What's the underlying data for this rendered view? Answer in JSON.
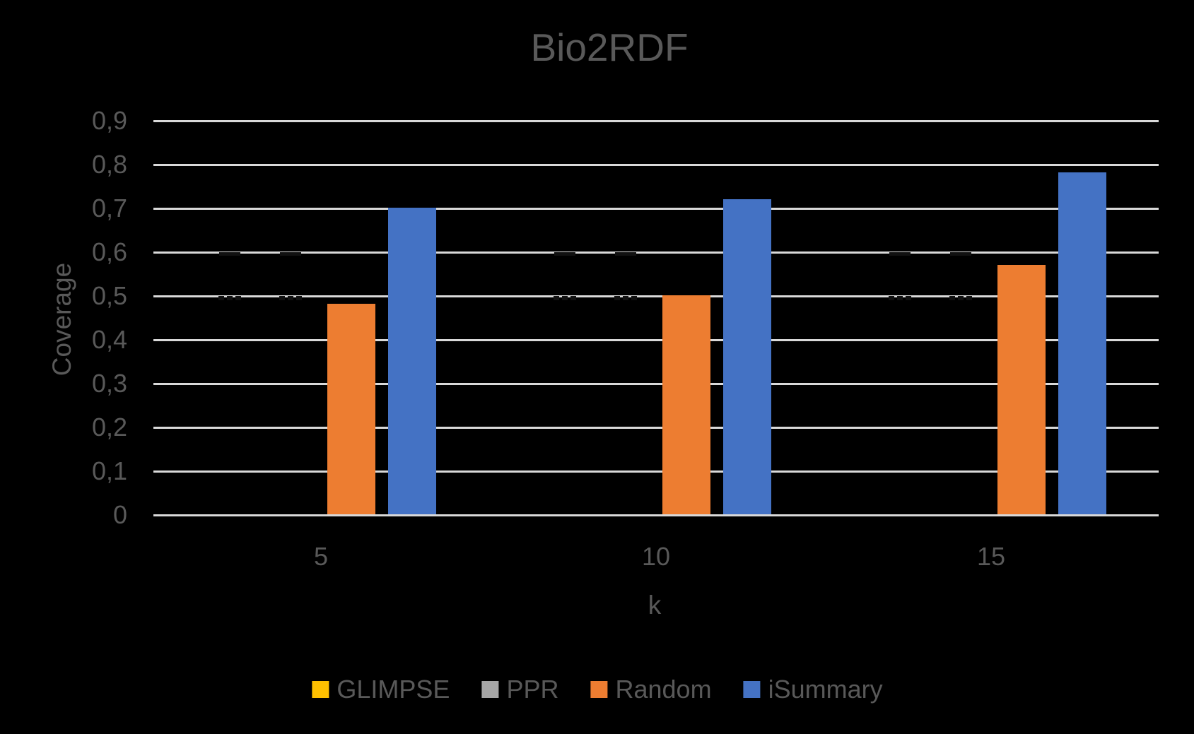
{
  "chart_data": {
    "type": "bar",
    "title": "Bio2RDF",
    "categories": [
      "5",
      "10",
      "15"
    ],
    "xlabel": "k",
    "ylabel": "Coverage",
    "ylim": [
      0,
      0.9
    ],
    "ytick_step": 0.1,
    "ytick_labels": [
      "0",
      "0,1",
      "0,2",
      "0,3",
      "0,4",
      "0,5",
      "0,6",
      "0,7",
      "0,8",
      "0,9"
    ],
    "decimal_separator": ",",
    "grid": true,
    "legend_position": "bottom",
    "series": [
      {
        "name": "GLIMPSE",
        "color": "#FFC000",
        "values": [
          null,
          null,
          null
        ],
        "bar_visible": false
      },
      {
        "name": "PPR",
        "color": "#A6A6A6",
        "values": [
          null,
          null,
          null
        ],
        "bar_visible": false
      },
      {
        "name": "Random",
        "color": "#ED7D31",
        "values": [
          0.48,
          0.5,
          0.57
        ],
        "bar_visible": true
      },
      {
        "name": "iSummary",
        "color": "#4472C4",
        "values": [
          0.7,
          0.72,
          0.78
        ],
        "bar_visible": true
      }
    ],
    "note": "GLIMPSE and PPR bars are not visible in the image; only faint dark notch marks appear near the 0,5 and 0,6 gridlines in their bar slots."
  },
  "colors": {
    "background": "#000000",
    "text": "#595959",
    "gridline": "#D9D9D9",
    "artifact": "#111111"
  }
}
